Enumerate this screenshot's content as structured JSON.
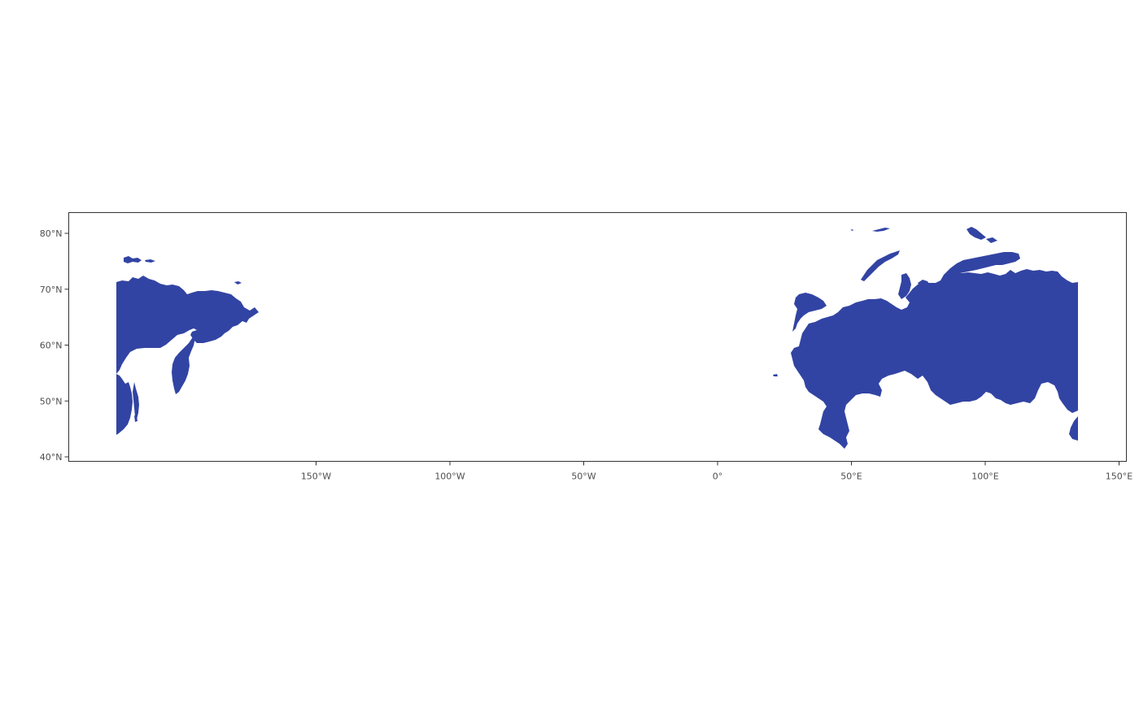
{
  "map": {
    "land_color": "#3244a3",
    "panel_border_color": "#333333",
    "background_color": "#ffffff",
    "x_axis": {
      "ticks": [
        -150,
        -100,
        -50,
        0,
        50,
        100,
        150
      ],
      "labels": [
        "150°W",
        "100°W",
        "50°W",
        "0°",
        "50°E",
        "100°E",
        "150°E"
      ]
    },
    "y_axis": {
      "ticks": [
        40,
        50,
        60,
        70,
        80
      ],
      "labels": [
        "40°N",
        "50°N",
        "60°N",
        "70°N",
        "80°N"
      ]
    },
    "regions": [
      {
        "name": "eastern-siberia-wrapped",
        "description_visible": false
      },
      {
        "name": "russia-and-central-asia",
        "description_visible": false
      }
    ]
  }
}
